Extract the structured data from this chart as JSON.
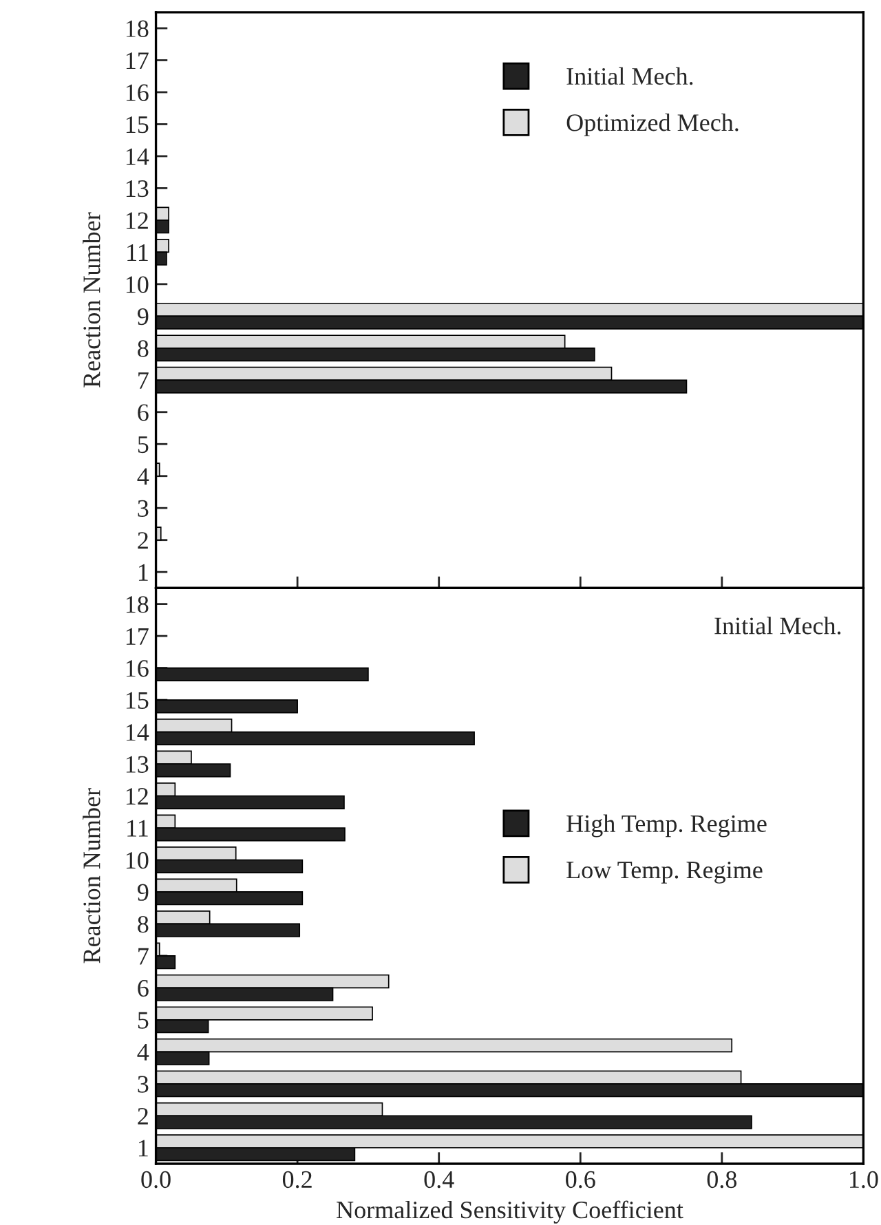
{
  "chart_data": [
    {
      "type": "bar",
      "orientation": "horizontal",
      "categories": [
        "18",
        "17",
        "16",
        "15",
        "14",
        "13",
        "12",
        "11",
        "10",
        "9",
        "8",
        "7",
        "6",
        "5",
        "4",
        "3",
        "2",
        "1"
      ],
      "ylabel": "Reaction Number",
      "xlim": [
        0,
        1
      ],
      "xticks": [
        0,
        0.2,
        0.4,
        0.6,
        0.8,
        1
      ],
      "tick_labels": "y",
      "legend": "top right",
      "grid": false,
      "series": [
        {
          "name": "Optimized Mech.",
          "color": "#dddddd",
          "values": [
            null,
            null,
            null,
            null,
            null,
            null,
            0.018,
            0.018,
            null,
            1.0,
            0.578,
            0.644,
            null,
            null,
            0.005,
            null,
            0.007,
            null
          ]
        },
        {
          "name": "Initial Mech.",
          "color": "#222222",
          "values": [
            null,
            null,
            null,
            null,
            null,
            null,
            0.018,
            0.015,
            null,
            1.0,
            0.62,
            0.75,
            null,
            null,
            null,
            null,
            null,
            null
          ]
        }
      ]
    },
    {
      "type": "bar",
      "orientation": "horizontal",
      "categories": [
        "18",
        "17",
        "16",
        "15",
        "14",
        "13",
        "12",
        "11",
        "10",
        "9",
        "8",
        "7",
        "6",
        "5",
        "4",
        "3",
        "2",
        "1"
      ],
      "ylabel": "Reaction Number",
      "xlabel": "Normalized Sensitivity Coefficient",
      "xlim": [
        0,
        1
      ],
      "xticks": [
        {
          "value": 0,
          "label": "0.0"
        },
        0.2,
        0.4,
        0.6,
        0.8,
        {
          "value": 1,
          "label": "1.0"
        }
      ],
      "legend": "right",
      "grid": false,
      "annotations": [
        "Initial Mech."
      ],
      "series": [
        {
          "name": "Low Temp. Regime",
          "color": "#dddddd",
          "values": [
            null,
            null,
            null,
            null,
            0.107,
            0.05,
            0.027,
            0.027,
            0.113,
            0.114,
            0.076,
            0.005,
            0.329,
            0.306,
            0.814,
            0.827,
            0.32,
            1.0
          ]
        },
        {
          "name": "High Temp. Regime",
          "color": "#222222",
          "values": [
            null,
            null,
            0.3,
            0.2,
            0.45,
            0.105,
            0.266,
            0.267,
            0.207,
            0.207,
            0.203,
            0.027,
            0.25,
            0.074,
            0.075,
            1.0,
            0.842,
            0.281
          ]
        }
      ]
    }
  ]
}
